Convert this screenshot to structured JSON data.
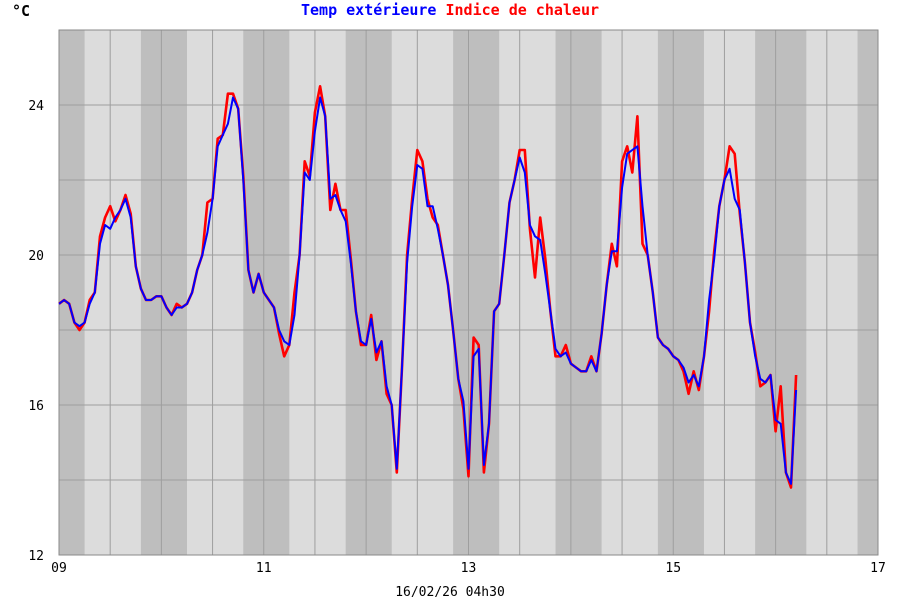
{
  "chart_data": {
    "type": "line",
    "title_parts": [
      {
        "text": "Temp extérieure",
        "color": "#0000ff"
      },
      {
        "text": "Indice de chaleur",
        "color": "#ff0000"
      }
    ],
    "unit_label": "°C",
    "footer": "16/02/26 04h30",
    "xlim": [
      9,
      17
    ],
    "ylim": [
      12,
      26
    ],
    "x_ticks": [
      {
        "value": 9,
        "label": "09"
      },
      {
        "value": 11,
        "label": "11"
      },
      {
        "value": 13,
        "label": "13"
      },
      {
        "value": 15,
        "label": "15"
      },
      {
        "value": 17,
        "label": "17"
      }
    ],
    "y_ticks": [
      {
        "value": 12,
        "label": "12"
      },
      {
        "value": 16,
        "label": "16"
      },
      {
        "value": 20,
        "label": "20"
      },
      {
        "value": 24,
        "label": "24"
      }
    ],
    "night_bands": [
      [
        9.0,
        9.25
      ],
      [
        9.8,
        10.25
      ],
      [
        10.8,
        11.25
      ],
      [
        11.8,
        12.25
      ],
      [
        12.85,
        13.3
      ],
      [
        13.85,
        14.3
      ],
      [
        14.85,
        15.3
      ],
      [
        15.8,
        16.3
      ],
      [
        16.8,
        17.0
      ]
    ],
    "colors": {
      "plot_bg": "#dcdcdc",
      "night_band": "#bebebe",
      "grid": "#9e9e9e",
      "temp": "#0000ff",
      "heat": "#ff0000"
    },
    "series": [
      {
        "name": "Temp extérieure",
        "color": "#0000ff",
        "points": [
          [
            9.0,
            18.7
          ],
          [
            9.05,
            18.8
          ],
          [
            9.1,
            18.7
          ],
          [
            9.15,
            18.2
          ],
          [
            9.2,
            18.1
          ],
          [
            9.25,
            18.2
          ],
          [
            9.3,
            18.7
          ],
          [
            9.35,
            19.0
          ],
          [
            9.4,
            20.3
          ],
          [
            9.45,
            20.8
          ],
          [
            9.5,
            20.7
          ],
          [
            9.55,
            21.0
          ],
          [
            9.6,
            21.2
          ],
          [
            9.65,
            21.5
          ],
          [
            9.7,
            21.0
          ],
          [
            9.75,
            19.7
          ],
          [
            9.8,
            19.1
          ],
          [
            9.85,
            18.8
          ],
          [
            9.9,
            18.8
          ],
          [
            9.95,
            18.9
          ],
          [
            10.0,
            18.9
          ],
          [
            10.05,
            18.6
          ],
          [
            10.1,
            18.4
          ],
          [
            10.15,
            18.6
          ],
          [
            10.2,
            18.6
          ],
          [
            10.25,
            18.7
          ],
          [
            10.3,
            19.0
          ],
          [
            10.35,
            19.6
          ],
          [
            10.4,
            20.0
          ],
          [
            10.45,
            20.6
          ],
          [
            10.5,
            21.5
          ],
          [
            10.55,
            22.9
          ],
          [
            10.6,
            23.2
          ],
          [
            10.65,
            23.5
          ],
          [
            10.7,
            24.2
          ],
          [
            10.75,
            23.9
          ],
          [
            10.8,
            22.0
          ],
          [
            10.85,
            19.6
          ],
          [
            10.9,
            19.0
          ],
          [
            10.95,
            19.5
          ],
          [
            11.0,
            19.0
          ],
          [
            11.05,
            18.8
          ],
          [
            11.1,
            18.6
          ],
          [
            11.15,
            18.0
          ],
          [
            11.2,
            17.7
          ],
          [
            11.25,
            17.6
          ],
          [
            11.3,
            18.4
          ],
          [
            11.35,
            20.0
          ],
          [
            11.4,
            22.2
          ],
          [
            11.45,
            22.0
          ],
          [
            11.5,
            23.3
          ],
          [
            11.55,
            24.2
          ],
          [
            11.6,
            23.7
          ],
          [
            11.65,
            21.5
          ],
          [
            11.7,
            21.6
          ],
          [
            11.75,
            21.2
          ],
          [
            11.8,
            20.9
          ],
          [
            11.85,
            19.8
          ],
          [
            11.9,
            18.5
          ],
          [
            11.95,
            17.7
          ],
          [
            12.0,
            17.6
          ],
          [
            12.05,
            18.3
          ],
          [
            12.1,
            17.4
          ],
          [
            12.15,
            17.7
          ],
          [
            12.2,
            16.5
          ],
          [
            12.25,
            16.0
          ],
          [
            12.3,
            14.3
          ],
          [
            12.35,
            17.0
          ],
          [
            12.4,
            19.8
          ],
          [
            12.45,
            21.3
          ],
          [
            12.5,
            22.4
          ],
          [
            12.55,
            22.3
          ],
          [
            12.6,
            21.3
          ],
          [
            12.65,
            21.3
          ],
          [
            12.7,
            20.7
          ],
          [
            12.75,
            20.0
          ],
          [
            12.8,
            19.2
          ],
          [
            12.85,
            18.0
          ],
          [
            12.9,
            16.7
          ],
          [
            12.95,
            16.1
          ],
          [
            13.0,
            14.3
          ],
          [
            13.05,
            17.3
          ],
          [
            13.1,
            17.5
          ],
          [
            13.15,
            14.4
          ],
          [
            13.2,
            15.5
          ],
          [
            13.25,
            18.5
          ],
          [
            13.3,
            18.7
          ],
          [
            13.35,
            20.0
          ],
          [
            13.4,
            21.4
          ],
          [
            13.45,
            22.0
          ],
          [
            13.5,
            22.6
          ],
          [
            13.55,
            22.2
          ],
          [
            13.6,
            20.8
          ],
          [
            13.65,
            20.5
          ],
          [
            13.7,
            20.4
          ],
          [
            13.75,
            19.5
          ],
          [
            13.8,
            18.5
          ],
          [
            13.85,
            17.5
          ],
          [
            13.9,
            17.3
          ],
          [
            13.95,
            17.4
          ],
          [
            14.0,
            17.1
          ],
          [
            14.05,
            17.0
          ],
          [
            14.1,
            16.9
          ],
          [
            14.15,
            16.9
          ],
          [
            14.2,
            17.2
          ],
          [
            14.25,
            16.9
          ],
          [
            14.3,
            17.9
          ],
          [
            14.35,
            19.2
          ],
          [
            14.4,
            20.1
          ],
          [
            14.45,
            20.1
          ],
          [
            14.5,
            21.8
          ],
          [
            14.55,
            22.7
          ],
          [
            14.6,
            22.8
          ],
          [
            14.65,
            22.9
          ],
          [
            14.7,
            21.3
          ],
          [
            14.75,
            20.0
          ],
          [
            14.8,
            19.0
          ],
          [
            14.85,
            17.8
          ],
          [
            14.9,
            17.6
          ],
          [
            14.95,
            17.5
          ],
          [
            15.0,
            17.3
          ],
          [
            15.05,
            17.2
          ],
          [
            15.1,
            17.0
          ],
          [
            15.15,
            16.6
          ],
          [
            15.2,
            16.8
          ],
          [
            15.25,
            16.5
          ],
          [
            15.3,
            17.3
          ],
          [
            15.35,
            18.8
          ],
          [
            15.4,
            19.9
          ],
          [
            15.45,
            21.3
          ],
          [
            15.5,
            22.0
          ],
          [
            15.55,
            22.3
          ],
          [
            15.6,
            21.5
          ],
          [
            15.65,
            21.2
          ],
          [
            15.7,
            19.8
          ],
          [
            15.75,
            18.2
          ],
          [
            15.8,
            17.3
          ],
          [
            15.85,
            16.7
          ],
          [
            15.9,
            16.6
          ],
          [
            15.95,
            16.8
          ],
          [
            16.0,
            15.6
          ],
          [
            16.05,
            15.5
          ],
          [
            16.1,
            14.2
          ],
          [
            16.15,
            13.9
          ],
          [
            16.2,
            16.4
          ]
        ]
      },
      {
        "name": "Indice de chaleur",
        "color": "#ff0000",
        "points": [
          [
            9.0,
            18.7
          ],
          [
            9.05,
            18.8
          ],
          [
            9.1,
            18.7
          ],
          [
            9.15,
            18.2
          ],
          [
            9.2,
            18.0
          ],
          [
            9.25,
            18.2
          ],
          [
            9.3,
            18.8
          ],
          [
            9.35,
            19.0
          ],
          [
            9.4,
            20.5
          ],
          [
            9.45,
            21.0
          ],
          [
            9.5,
            21.3
          ],
          [
            9.55,
            20.9
          ],
          [
            9.6,
            21.2
          ],
          [
            9.65,
            21.6
          ],
          [
            9.7,
            21.1
          ],
          [
            9.75,
            19.7
          ],
          [
            9.8,
            19.1
          ],
          [
            9.85,
            18.8
          ],
          [
            9.9,
            18.8
          ],
          [
            9.95,
            18.9
          ],
          [
            10.0,
            18.9
          ],
          [
            10.05,
            18.6
          ],
          [
            10.1,
            18.4
          ],
          [
            10.15,
            18.7
          ],
          [
            10.2,
            18.6
          ],
          [
            10.25,
            18.7
          ],
          [
            10.3,
            19.0
          ],
          [
            10.35,
            19.6
          ],
          [
            10.4,
            20.0
          ],
          [
            10.45,
            21.4
          ],
          [
            10.5,
            21.5
          ],
          [
            10.55,
            23.1
          ],
          [
            10.6,
            23.2
          ],
          [
            10.65,
            24.3
          ],
          [
            10.7,
            24.3
          ],
          [
            10.75,
            23.9
          ],
          [
            10.8,
            22.1
          ],
          [
            10.85,
            19.6
          ],
          [
            10.9,
            19.0
          ],
          [
            10.95,
            19.5
          ],
          [
            11.0,
            19.0
          ],
          [
            11.05,
            18.8
          ],
          [
            11.1,
            18.6
          ],
          [
            11.15,
            17.9
          ],
          [
            11.2,
            17.3
          ],
          [
            11.25,
            17.6
          ],
          [
            11.3,
            19.0
          ],
          [
            11.35,
            20.0
          ],
          [
            11.4,
            22.5
          ],
          [
            11.45,
            22.1
          ],
          [
            11.5,
            23.8
          ],
          [
            11.55,
            24.5
          ],
          [
            11.6,
            23.7
          ],
          [
            11.65,
            21.2
          ],
          [
            11.7,
            21.9
          ],
          [
            11.75,
            21.2
          ],
          [
            11.8,
            21.2
          ],
          [
            11.85,
            19.9
          ],
          [
            11.9,
            18.5
          ],
          [
            11.95,
            17.6
          ],
          [
            12.0,
            17.6
          ],
          [
            12.05,
            18.4
          ],
          [
            12.1,
            17.2
          ],
          [
            12.15,
            17.7
          ],
          [
            12.2,
            16.3
          ],
          [
            12.25,
            16.0
          ],
          [
            12.3,
            14.2
          ],
          [
            12.35,
            17.0
          ],
          [
            12.4,
            20.0
          ],
          [
            12.45,
            21.5
          ],
          [
            12.5,
            22.8
          ],
          [
            12.55,
            22.5
          ],
          [
            12.6,
            21.5
          ],
          [
            12.65,
            21.0
          ],
          [
            12.7,
            20.8
          ],
          [
            12.75,
            20.0
          ],
          [
            12.8,
            19.2
          ],
          [
            12.85,
            18.0
          ],
          [
            12.9,
            16.7
          ],
          [
            12.95,
            15.9
          ],
          [
            13.0,
            14.1
          ],
          [
            13.05,
            17.8
          ],
          [
            13.1,
            17.6
          ],
          [
            13.15,
            14.2
          ],
          [
            13.2,
            15.5
          ],
          [
            13.25,
            18.5
          ],
          [
            13.3,
            18.7
          ],
          [
            13.35,
            20.0
          ],
          [
            13.4,
            21.4
          ],
          [
            13.45,
            22.0
          ],
          [
            13.5,
            22.8
          ],
          [
            13.55,
            22.8
          ],
          [
            13.6,
            20.7
          ],
          [
            13.65,
            19.4
          ],
          [
            13.7,
            21.0
          ],
          [
            13.75,
            19.9
          ],
          [
            13.8,
            18.5
          ],
          [
            13.85,
            17.3
          ],
          [
            13.9,
            17.3
          ],
          [
            13.95,
            17.6
          ],
          [
            14.0,
            17.1
          ],
          [
            14.05,
            17.0
          ],
          [
            14.1,
            16.9
          ],
          [
            14.15,
            16.9
          ],
          [
            14.2,
            17.3
          ],
          [
            14.25,
            16.9
          ],
          [
            14.3,
            17.9
          ],
          [
            14.35,
            19.2
          ],
          [
            14.4,
            20.3
          ],
          [
            14.45,
            19.7
          ],
          [
            14.5,
            22.5
          ],
          [
            14.55,
            22.9
          ],
          [
            14.6,
            22.2
          ],
          [
            14.65,
            23.7
          ],
          [
            14.7,
            20.3
          ],
          [
            14.75,
            20.0
          ],
          [
            14.8,
            19.0
          ],
          [
            14.85,
            17.8
          ],
          [
            14.9,
            17.6
          ],
          [
            14.95,
            17.5
          ],
          [
            15.0,
            17.3
          ],
          [
            15.05,
            17.2
          ],
          [
            15.1,
            16.9
          ],
          [
            15.15,
            16.3
          ],
          [
            15.2,
            16.9
          ],
          [
            15.25,
            16.4
          ],
          [
            15.3,
            17.3
          ],
          [
            15.35,
            18.5
          ],
          [
            15.4,
            20.1
          ],
          [
            15.45,
            21.3
          ],
          [
            15.5,
            22.0
          ],
          [
            15.55,
            22.9
          ],
          [
            15.6,
            22.7
          ],
          [
            15.65,
            21.1
          ],
          [
            15.7,
            19.8
          ],
          [
            15.75,
            18.2
          ],
          [
            15.8,
            17.4
          ],
          [
            15.85,
            16.5
          ],
          [
            15.9,
            16.6
          ],
          [
            15.95,
            16.8
          ],
          [
            16.0,
            15.3
          ],
          [
            16.05,
            16.5
          ],
          [
            16.1,
            14.2
          ],
          [
            16.15,
            13.8
          ],
          [
            16.2,
            16.8
          ]
        ]
      }
    ]
  }
}
